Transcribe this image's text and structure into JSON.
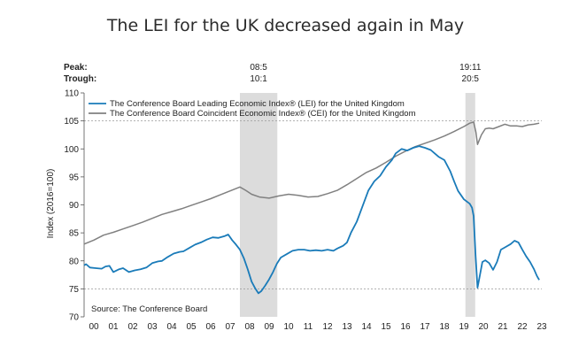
{
  "chart_data": {
    "type": "line",
    "title": "The LEI for the UK decreased again in May",
    "ylabel": "Index (2016=100)",
    "source": "Source: The Conference Board",
    "peak_label": "Peak:",
    "trough_label": "Trough:",
    "ylim": [
      70,
      110
    ],
    "yticks": [
      70,
      75,
      80,
      85,
      90,
      95,
      100,
      105,
      110
    ],
    "xlim": [
      2000.0,
      2023.5
    ],
    "xtick_labels": [
      "00",
      "01",
      "02",
      "03",
      "04",
      "05",
      "06",
      "07",
      "08",
      "09",
      "10",
      "11",
      "12",
      "13",
      "14",
      "15",
      "16",
      "17",
      "18",
      "19",
      "20",
      "21",
      "22",
      "23"
    ],
    "gridlines": [
      75,
      105
    ],
    "recessions": [
      {
        "start": 2008.0,
        "end": 2009.92,
        "peak": "08:5",
        "trough": "10:1"
      },
      {
        "start": 2019.58,
        "end": 2020.08,
        "peak": "19:11",
        "trough": "20:5"
      }
    ],
    "legend": "top-left",
    "colors": {
      "lei": "#1a7bb9",
      "cei": "#808080",
      "recession": "#dcdcdc",
      "grid": "#999999"
    },
    "series": [
      {
        "name": "The Conference Board Leading Economic Index® (LEI) for the United Kingdom",
        "key": "lei",
        "points": [
          [
            2000.0,
            79.2
          ],
          [
            2000.1,
            79.4
          ],
          [
            2000.3,
            78.8
          ],
          [
            2000.6,
            78.7
          ],
          [
            2000.9,
            78.6
          ],
          [
            2001.1,
            79.0
          ],
          [
            2001.3,
            79.1
          ],
          [
            2001.5,
            78.0
          ],
          [
            2001.8,
            78.5
          ],
          [
            2002.0,
            78.7
          ],
          [
            2002.3,
            78.0
          ],
          [
            2002.6,
            78.3
          ],
          [
            2002.9,
            78.5
          ],
          [
            2003.2,
            78.8
          ],
          [
            2003.5,
            79.6
          ],
          [
            2003.8,
            79.9
          ],
          [
            2004.0,
            80.0
          ],
          [
            2004.3,
            80.7
          ],
          [
            2004.6,
            81.3
          ],
          [
            2004.9,
            81.6
          ],
          [
            2005.1,
            81.7
          ],
          [
            2005.4,
            82.3
          ],
          [
            2005.7,
            82.9
          ],
          [
            2006.0,
            83.3
          ],
          [
            2006.3,
            83.8
          ],
          [
            2006.6,
            84.2
          ],
          [
            2006.9,
            84.1
          ],
          [
            2007.2,
            84.4
          ],
          [
            2007.4,
            84.7
          ],
          [
            2007.6,
            83.7
          ],
          [
            2007.8,
            82.9
          ],
          [
            2008.0,
            82.0
          ],
          [
            2008.2,
            80.5
          ],
          [
            2008.4,
            78.5
          ],
          [
            2008.6,
            76.3
          ],
          [
            2008.8,
            75.0
          ],
          [
            2008.95,
            74.2
          ],
          [
            2009.1,
            74.6
          ],
          [
            2009.3,
            75.6
          ],
          [
            2009.5,
            76.7
          ],
          [
            2009.7,
            78.0
          ],
          [
            2009.9,
            79.5
          ],
          [
            2010.1,
            80.6
          ],
          [
            2010.4,
            81.2
          ],
          [
            2010.7,
            81.8
          ],
          [
            2011.0,
            82.0
          ],
          [
            2011.3,
            82.0
          ],
          [
            2011.6,
            81.8
          ],
          [
            2011.9,
            81.9
          ],
          [
            2012.2,
            81.8
          ],
          [
            2012.5,
            82.0
          ],
          [
            2012.8,
            81.8
          ],
          [
            2013.0,
            82.2
          ],
          [
            2013.3,
            82.7
          ],
          [
            2013.5,
            83.3
          ],
          [
            2013.7,
            85.0
          ],
          [
            2014.0,
            87.0
          ],
          [
            2014.3,
            89.8
          ],
          [
            2014.6,
            92.6
          ],
          [
            2014.9,
            94.2
          ],
          [
            2015.2,
            95.2
          ],
          [
            2015.5,
            96.8
          ],
          [
            2015.8,
            98.0
          ],
          [
            2016.0,
            99.2
          ],
          [
            2016.3,
            100.0
          ],
          [
            2016.6,
            99.7
          ],
          [
            2016.9,
            100.2
          ],
          [
            2017.2,
            100.5
          ],
          [
            2017.5,
            100.2
          ],
          [
            2017.8,
            99.8
          ],
          [
            2018.0,
            99.2
          ],
          [
            2018.2,
            98.6
          ],
          [
            2018.5,
            98.0
          ],
          [
            2018.8,
            96.0
          ],
          [
            2019.0,
            94.2
          ],
          [
            2019.2,
            92.5
          ],
          [
            2019.5,
            91.0
          ],
          [
            2019.8,
            90.2
          ],
          [
            2019.92,
            89.5
          ],
          [
            2020.0,
            88.0
          ],
          [
            2020.1,
            81.0
          ],
          [
            2020.2,
            75.2
          ],
          [
            2020.3,
            77.0
          ],
          [
            2020.45,
            79.8
          ],
          [
            2020.6,
            80.1
          ],
          [
            2020.8,
            79.6
          ],
          [
            2021.0,
            78.4
          ],
          [
            2021.2,
            79.8
          ],
          [
            2021.4,
            82.0
          ],
          [
            2021.6,
            82.4
          ],
          [
            2021.9,
            83.0
          ],
          [
            2022.1,
            83.6
          ],
          [
            2022.3,
            83.3
          ],
          [
            2022.5,
            82.0
          ],
          [
            2022.7,
            80.8
          ],
          [
            2022.9,
            79.8
          ],
          [
            2023.1,
            78.5
          ],
          [
            2023.25,
            77.3
          ],
          [
            2023.37,
            76.6
          ]
        ]
      },
      {
        "name": "The Conference Board Coincident Economic Index® (CEI) for the United Kingdom",
        "key": "cei",
        "points": [
          [
            2000.0,
            83.0
          ],
          [
            2000.5,
            83.7
          ],
          [
            2001.0,
            84.6
          ],
          [
            2001.5,
            85.1
          ],
          [
            2002.0,
            85.7
          ],
          [
            2002.5,
            86.3
          ],
          [
            2003.0,
            86.9
          ],
          [
            2003.5,
            87.6
          ],
          [
            2004.0,
            88.3
          ],
          [
            2004.5,
            88.8
          ],
          [
            2005.0,
            89.3
          ],
          [
            2005.5,
            89.9
          ],
          [
            2006.0,
            90.5
          ],
          [
            2006.5,
            91.1
          ],
          [
            2007.0,
            91.8
          ],
          [
            2007.5,
            92.5
          ],
          [
            2008.0,
            93.2
          ],
          [
            2008.3,
            92.6
          ],
          [
            2008.6,
            91.9
          ],
          [
            2009.0,
            91.4
          ],
          [
            2009.5,
            91.2
          ],
          [
            2010.0,
            91.6
          ],
          [
            2010.5,
            91.9
          ],
          [
            2011.0,
            91.7
          ],
          [
            2011.5,
            91.4
          ],
          [
            2012.0,
            91.5
          ],
          [
            2012.5,
            92.0
          ],
          [
            2013.0,
            92.6
          ],
          [
            2013.5,
            93.6
          ],
          [
            2014.0,
            94.7
          ],
          [
            2014.5,
            95.8
          ],
          [
            2015.0,
            96.6
          ],
          [
            2015.5,
            97.6
          ],
          [
            2016.0,
            98.7
          ],
          [
            2016.5,
            99.6
          ],
          [
            2017.0,
            100.4
          ],
          [
            2017.5,
            101.0
          ],
          [
            2018.0,
            101.6
          ],
          [
            2018.5,
            102.3
          ],
          [
            2019.0,
            103.1
          ],
          [
            2019.5,
            104.0
          ],
          [
            2019.8,
            104.6
          ],
          [
            2020.0,
            104.8
          ],
          [
            2020.12,
            103.0
          ],
          [
            2020.2,
            100.8
          ],
          [
            2020.4,
            102.5
          ],
          [
            2020.6,
            103.6
          ],
          [
            2020.8,
            103.7
          ],
          [
            2021.0,
            103.6
          ],
          [
            2021.3,
            104.0
          ],
          [
            2021.6,
            104.4
          ],
          [
            2021.9,
            104.1
          ],
          [
            2022.2,
            104.1
          ],
          [
            2022.5,
            104.0
          ],
          [
            2022.8,
            104.3
          ],
          [
            2023.1,
            104.4
          ],
          [
            2023.37,
            104.6
          ]
        ]
      }
    ]
  }
}
